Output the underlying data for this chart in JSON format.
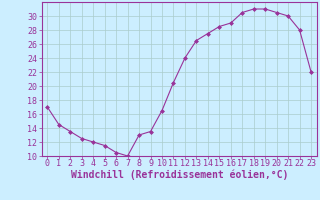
{
  "x": [
    0,
    1,
    2,
    3,
    4,
    5,
    6,
    7,
    8,
    9,
    10,
    11,
    12,
    13,
    14,
    15,
    16,
    17,
    18,
    19,
    20,
    21,
    22,
    23
  ],
  "y": [
    17,
    14.5,
    13.5,
    12.5,
    12,
    11.5,
    10.5,
    10,
    13,
    13.5,
    16.5,
    20.5,
    24,
    26.5,
    27.5,
    28.5,
    29,
    30.5,
    31,
    31,
    30.5,
    30,
    28,
    22
  ],
  "line_color": "#993399",
  "marker": "D",
  "marker_size": 2,
  "bg_color": "#cceeff",
  "grid_color": "#aacccc",
  "xlabel": "Windchill (Refroidissement éolien,°C)",
  "ylim": [
    10,
    32
  ],
  "xlim": [
    -0.5,
    23.5
  ],
  "yticks": [
    10,
    12,
    14,
    16,
    18,
    20,
    22,
    24,
    26,
    28,
    30
  ],
  "xtick_labels": [
    "0",
    "1",
    "2",
    "3",
    "4",
    "5",
    "6",
    "7",
    "8",
    "9",
    "10",
    "11",
    "12",
    "13",
    "14",
    "15",
    "16",
    "17",
    "18",
    "19",
    "20",
    "21",
    "22",
    "23"
  ],
  "tick_color": "#993399",
  "label_fontsize": 6,
  "xlabel_fontsize": 7,
  "axis_color": "#993399"
}
